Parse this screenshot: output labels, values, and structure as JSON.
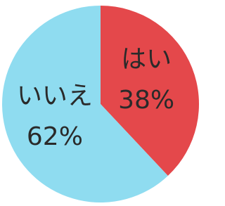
{
  "chart_data": {
    "type": "pie",
    "categories": [
      "はい",
      "いいえ"
    ],
    "values": [
      38,
      62
    ],
    "value_labels": [
      "38%",
      "62%"
    ],
    "colors": [
      "#e4484b",
      "#8fdcf0"
    ]
  }
}
